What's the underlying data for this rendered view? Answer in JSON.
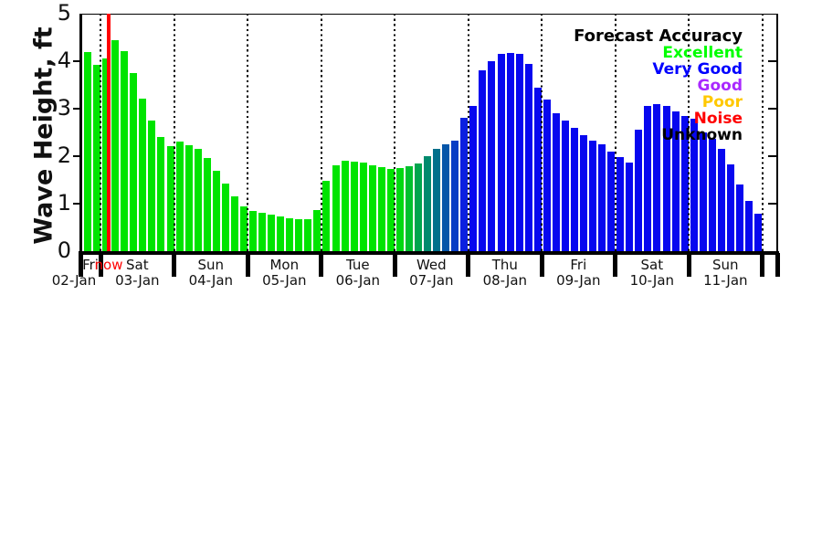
{
  "chart_data": {
    "type": "bar",
    "title": "",
    "ylabel": "Wave Height, ft",
    "ylim": [
      0,
      5
    ],
    "ytick_labels": [
      "0",
      "1",
      "2",
      "3",
      "4",
      "5"
    ],
    "grid": "vertical-dotted-day-boundaries",
    "now_marker": {
      "label": "now",
      "color": "#ff0000"
    },
    "legend": {
      "position": "top-right-inside",
      "title": {
        "label": "Forecast Accuracy",
        "color": "#000000"
      },
      "entries": [
        {
          "label": "Excellent",
          "color": "#00ff00"
        },
        {
          "label": "Very Good",
          "color": "#0000ff"
        },
        {
          "label": "Good",
          "color": "#a928ff"
        },
        {
          "label": "Poor",
          "color": "#ffc800"
        },
        {
          "label": "Noise",
          "color": "#ff0000"
        },
        {
          "label": "Unknown",
          "color": "#000000"
        }
      ]
    },
    "days": [
      {
        "name": "Fri",
        "date": "02-Jan"
      },
      {
        "name": "Sat",
        "date": "03-Jan"
      },
      {
        "name": "Sun",
        "date": "04-Jan"
      },
      {
        "name": "Mon",
        "date": "05-Jan"
      },
      {
        "name": "Tue",
        "date": "06-Jan"
      },
      {
        "name": "Wed",
        "date": "07-Jan"
      },
      {
        "name": "Thu",
        "date": "08-Jan"
      },
      {
        "name": "Fri",
        "date": "09-Jan"
      },
      {
        "name": "Sat",
        "date": "10-Jan"
      },
      {
        "name": "Sun",
        "date": "11-Jan"
      }
    ],
    "bar_values_ft": [
      4.2,
      3.92,
      4.05,
      4.45,
      4.22,
      3.75,
      3.22,
      2.75,
      2.4,
      2.22,
      2.3,
      2.24,
      2.15,
      1.97,
      1.7,
      1.42,
      1.15,
      0.95,
      0.84,
      0.8,
      0.77,
      0.73,
      0.7,
      0.68,
      0.68,
      0.87,
      1.48,
      1.8,
      1.9,
      1.89,
      1.87,
      1.8,
      1.77,
      1.74,
      1.75,
      1.78,
      1.85,
      2.0,
      2.15,
      2.25,
      2.33,
      2.8,
      3.05,
      3.8,
      4.0,
      4.15,
      4.17,
      4.15,
      3.95,
      3.45,
      3.2,
      2.9,
      2.75,
      2.6,
      2.45,
      2.33,
      2.25,
      2.1,
      1.98,
      1.87,
      2.55,
      3.05,
      3.1,
      3.05,
      2.95,
      2.85,
      2.78,
      2.5,
      2.37,
      2.15,
      1.82,
      1.4,
      1.05,
      0.78
    ],
    "bar_colors": [
      "#00e400",
      "#00e400",
      "#00e400",
      "#00e400",
      "#00e400",
      "#00e400",
      "#00e400",
      "#00e400",
      "#00e400",
      "#00e400",
      "#00e400",
      "#00e400",
      "#00e400",
      "#00e400",
      "#00e400",
      "#00e400",
      "#00e400",
      "#00e400",
      "#00e400",
      "#00e400",
      "#00e400",
      "#00e400",
      "#00e400",
      "#00e400",
      "#00e400",
      "#00e400",
      "#00e400",
      "#00e400",
      "#00e400",
      "#00e400",
      "#00e400",
      "#00e400",
      "#00e400",
      "#00e400",
      "#00d911",
      "#00c02e",
      "#00a54e",
      "#008a6d",
      "#00708b",
      "#0656a9",
      "#093dc4",
      "#0b1fe0",
      "#0707ef",
      "#0707ef",
      "#0707ef",
      "#0707ef",
      "#0707ef",
      "#0707ef",
      "#0707ef",
      "#0707ef",
      "#0707ef",
      "#0707ef",
      "#0707ef",
      "#0707ef",
      "#0707ef",
      "#0707ef",
      "#0707ef",
      "#0707ef",
      "#0707ef",
      "#0707ef",
      "#0707ef",
      "#0707ef",
      "#0707ef",
      "#0707ef",
      "#0707ef",
      "#0707ef",
      "#0707ef",
      "#0707ef",
      "#0707ef",
      "#0707ef",
      "#0707ef",
      "#0707ef",
      "#0707ef",
      "#0707ef"
    ]
  }
}
